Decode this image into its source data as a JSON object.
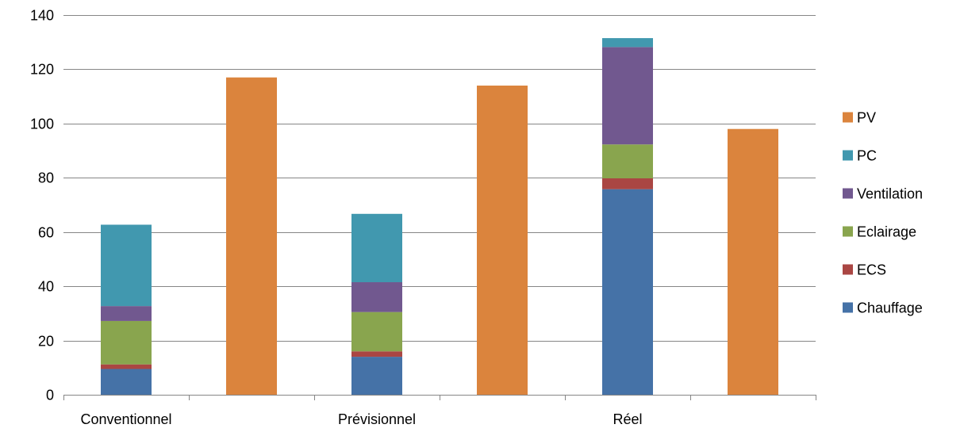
{
  "chart_data": {
    "type": "bar",
    "stacked": true,
    "ylim": [
      0,
      140
    ],
    "yticks": [
      0,
      20,
      40,
      60,
      80,
      100,
      120,
      140
    ],
    "grid": true,
    "legend_position": "right",
    "groups": [
      "Conventionnel",
      "Prévisionnel",
      "Réel"
    ],
    "series": [
      {
        "name": "Chauffage",
        "color": "#4572A7"
      },
      {
        "name": "ECS",
        "color": "#AA4643"
      },
      {
        "name": "Eclairage",
        "color": "#89A54E"
      },
      {
        "name": "Ventilation",
        "color": "#71588F"
      },
      {
        "name": "PC",
        "color": "#4198AF"
      },
      {
        "name": "PV",
        "color": "#DB843D"
      }
    ],
    "bars": [
      {
        "group": "Conventionnel",
        "values": {
          "Chauffage": 9.5,
          "ECS": 1.7,
          "Eclairage": 16,
          "Ventilation": 5.5,
          "PC": 30
        }
      },
      {
        "group": "Conventionnel",
        "values": {
          "PV": 117
        }
      },
      {
        "group": "Prévisionnel",
        "values": {
          "Chauffage": 14,
          "ECS": 2,
          "Eclairage": 14.5,
          "Ventilation": 11,
          "PC": 25.2
        }
      },
      {
        "group": "Prévisionnel",
        "values": {
          "PV": 114
        }
      },
      {
        "group": "Réel",
        "values": {
          "Chauffage": 75.8,
          "ECS": 4,
          "Eclairage": 12.5,
          "Ventilation": 35.9,
          "PC": 3.3
        }
      },
      {
        "group": "Réel",
        "values": {
          "PV": 98
        }
      }
    ],
    "title": "",
    "xlabel": "",
    "ylabel": ""
  }
}
